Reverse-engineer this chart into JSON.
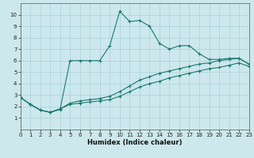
{
  "xlabel": "Humidex (Indice chaleur)",
  "bg_color": "#cce8ec",
  "grid_color": "#aad0d8",
  "line_color": "#1a7a6e",
  "xlim": [
    0,
    23
  ],
  "ylim": [
    0,
    11
  ],
  "xticks": [
    0,
    1,
    2,
    3,
    4,
    5,
    6,
    7,
    8,
    9,
    10,
    11,
    12,
    13,
    14,
    15,
    16,
    17,
    18,
    19,
    20,
    21,
    22,
    23
  ],
  "yticks": [
    1,
    2,
    3,
    4,
    5,
    6,
    7,
    8,
    9,
    10
  ],
  "line1_x": [
    0,
    1,
    2,
    3,
    4,
    5,
    6,
    7,
    8,
    9,
    10,
    11,
    12,
    13,
    14,
    15,
    16,
    17,
    18,
    19,
    20,
    21,
    22,
    23
  ],
  "line1_y": [
    2.8,
    2.2,
    1.7,
    1.5,
    1.75,
    6.0,
    6.0,
    6.0,
    6.0,
    7.3,
    10.3,
    9.4,
    9.5,
    9.0,
    7.5,
    7.0,
    7.3,
    7.3,
    6.6,
    6.1,
    6.1,
    6.2,
    6.2,
    5.7
  ],
  "line2_x": [
    0,
    1,
    2,
    3,
    4,
    5,
    6,
    7,
    8,
    9,
    10,
    11,
    12,
    13,
    14,
    15,
    16,
    17,
    18,
    19,
    20,
    21,
    22,
    23
  ],
  "line2_y": [
    2.8,
    2.2,
    1.7,
    1.5,
    1.8,
    2.3,
    2.5,
    2.6,
    2.7,
    2.9,
    3.3,
    3.8,
    4.3,
    4.6,
    4.9,
    5.1,
    5.3,
    5.5,
    5.7,
    5.8,
    6.0,
    6.1,
    6.2,
    5.7
  ],
  "line3_x": [
    0,
    1,
    2,
    3,
    4,
    5,
    6,
    7,
    8,
    9,
    10,
    11,
    12,
    13,
    14,
    15,
    16,
    17,
    18,
    19,
    20,
    21,
    22,
    23
  ],
  "line3_y": [
    2.8,
    2.2,
    1.7,
    1.5,
    1.8,
    2.2,
    2.3,
    2.4,
    2.5,
    2.6,
    2.9,
    3.3,
    3.7,
    4.0,
    4.2,
    4.5,
    4.7,
    4.9,
    5.1,
    5.3,
    5.4,
    5.6,
    5.8,
    5.5
  ]
}
